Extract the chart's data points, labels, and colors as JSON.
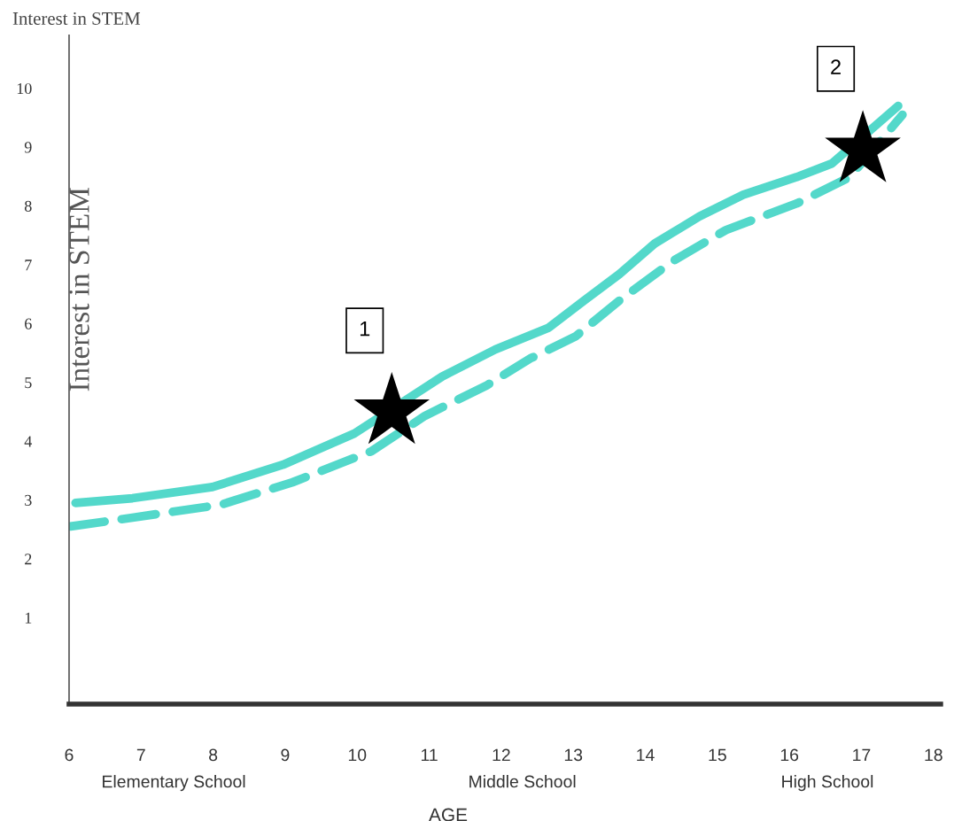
{
  "chart_data": {
    "type": "line",
    "title": "Interest in STEM",
    "ylabel": "Interest in STEM",
    "xlabel": "AGE",
    "x": [
      6.09,
      6.88,
      7.99,
      8.97,
      9.96,
      11.18,
      11.92,
      12.66,
      13.15,
      13.64,
      14.13,
      14.75,
      15.36,
      16.1,
      16.59,
      17.51
    ],
    "series": [
      {
        "color": "#40d4c4",
        "line_style": "solid",
        "values": [
          2.95,
          3.03,
          3.22,
          3.6,
          4.13,
          5.1,
          5.56,
          5.93,
          6.39,
          6.84,
          7.36,
          7.82,
          8.19,
          8.49,
          8.72,
          9.7
        ]
      },
      {
        "color": "#40d4c4",
        "line_style": "dashed",
        "x": [
          6.02,
          6.88,
          8.11,
          9.1,
          10.2,
          10.94,
          11.8,
          12.41,
          13.03,
          13.64,
          14.38,
          15.12,
          16.1,
          16.84,
          17.57
        ],
        "values": [
          2.55,
          2.7,
          2.92,
          3.3,
          3.83,
          4.43,
          4.95,
          5.41,
          5.78,
          6.39,
          7.06,
          7.59,
          8.04,
          8.49,
          9.55
        ]
      },
      {
        "type": "scatter",
        "marker": "star",
        "color": "#000000",
        "x": [
          10.48,
          17.02
        ],
        "values": [
          4.5,
          8.95
        ]
      }
    ],
    "annotations": [
      "1",
      "2",
      "Elementary School",
      "Middle School",
      "High School"
    ],
    "xlim": [
      6,
      18.1
    ],
    "ylim": [
      -0.47,
      10.9
    ],
    "xticks": [
      6,
      7,
      8,
      9,
      10,
      11,
      12,
      13,
      14,
      15,
      16,
      17,
      18
    ],
    "yticks": [
      1,
      2,
      3,
      4,
      5,
      6,
      7,
      8,
      9,
      10
    ],
    "grid": false,
    "legend": false
  }
}
